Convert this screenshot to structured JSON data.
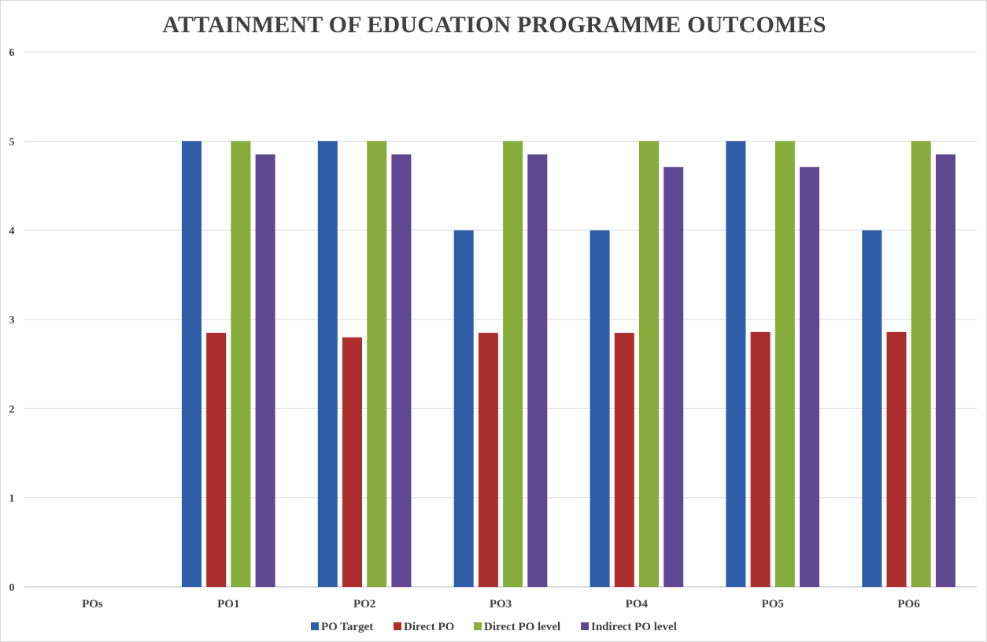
{
  "chart_data": {
    "type": "bar",
    "title": "ATTAINMENT OF EDUCATION  PROGRAMME OUTCOMES",
    "xlabel": "",
    "ylabel": "",
    "categories": [
      "POs",
      "PO1",
      "PO2",
      "PO3",
      "PO4",
      "PO5",
      "PO6"
    ],
    "ylim": [
      0,
      6
    ],
    "yticks": [
      "0",
      "1",
      "2",
      "3",
      "4",
      "5",
      "6"
    ],
    "grid": true,
    "legend_position": "bottom",
    "series": [
      {
        "name": "PO Target",
        "color": "#2e5da8",
        "values": [
          null,
          5,
          5,
          4,
          4,
          5,
          4
        ]
      },
      {
        "name": "Direct PO",
        "color": "#ac2f2d",
        "values": [
          null,
          2.85,
          2.8,
          2.85,
          2.85,
          2.86,
          2.86
        ]
      },
      {
        "name": "Direct PO level",
        "color": "#86ac3b",
        "values": [
          null,
          5,
          5,
          5,
          5,
          5,
          5
        ]
      },
      {
        "name": "Indirect PO level",
        "color": "#5f4791",
        "values": [
          null,
          4.85,
          4.85,
          4.85,
          4.71,
          4.71,
          4.85
        ]
      }
    ]
  }
}
